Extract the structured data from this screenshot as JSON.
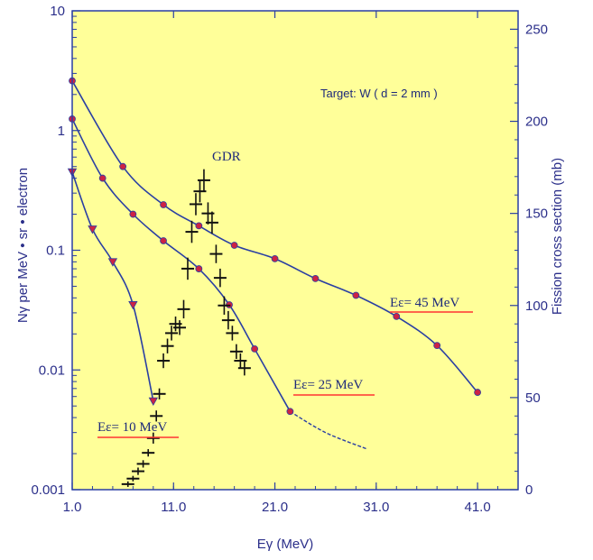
{
  "chart_data": {
    "type": "line",
    "xlabel": "Eγ (MeV)",
    "ylabel_left": "Nγ per MeV • sr • electron",
    "ylabel_right": "Fission cross section (mb)",
    "x_ticks": [
      "1.0",
      "11.0",
      "21.0",
      "31.0",
      "41.0"
    ],
    "y_left_ticks": [
      "0.001",
      "0.01",
      "0.1",
      "1",
      "10"
    ],
    "y_right_ticks": [
      "0",
      "50",
      "100",
      "150",
      "200",
      "250"
    ],
    "xlim": [
      1,
      45
    ],
    "ylim_left": [
      0.001,
      10
    ],
    "y_left_scale": "log",
    "ylim_right": [
      0,
      260
    ],
    "background": "#ffff99",
    "line_color": "#2a3fa3",
    "marker_color": "#cc2244",
    "label_line_color": "#ff3333",
    "annotations": {
      "target": "Target:  W ( d = 2 mm )",
      "gdr": "GDR",
      "e45": "Eε= 45 MeV",
      "e25": "Eε= 25 MeV",
      "e10": "Eε= 10 MeV"
    },
    "series": [
      {
        "name": "Eε= 45 MeV",
        "marker": "circle",
        "x": [
          1.0,
          6.0,
          10.0,
          13.5,
          17.0,
          21.0,
          25.0,
          29.0,
          33.0,
          37.0,
          41.0
        ],
        "y": [
          2.6,
          0.5,
          0.24,
          0.16,
          0.11,
          0.085,
          0.058,
          0.042,
          0.028,
          0.016,
          0.0065
        ]
      },
      {
        "name": "Eε= 25 MeV",
        "marker": "circle",
        "x": [
          1.0,
          4.0,
          7.0,
          10.0,
          13.5,
          16.5,
          19.0,
          22.5
        ],
        "y": [
          1.25,
          0.4,
          0.2,
          0.12,
          0.07,
          0.035,
          0.015,
          0.0045
        ],
        "tail_x": [
          22.5,
          26.0,
          30.0
        ],
        "tail_y": [
          0.0045,
          0.003,
          0.0022
        ]
      },
      {
        "name": "Eε= 10 MeV",
        "marker": "triangle",
        "x": [
          1.0,
          3.0,
          5.0,
          7.0,
          9.0
        ],
        "y": [
          0.45,
          0.15,
          0.08,
          0.035,
          0.0055
        ]
      },
      {
        "name": "Fission cross section",
        "marker": "errorbar",
        "axis": "right",
        "x": [
          6.5,
          7.0,
          7.5,
          8.0,
          8.5,
          9.0,
          9.3,
          9.6,
          10.0,
          10.4,
          10.8,
          11.2,
          11.6,
          12.0,
          12.4,
          12.8,
          13.2,
          13.6,
          14.0,
          14.4,
          14.8,
          15.2,
          15.6,
          16.0,
          16.4,
          16.8,
          17.2,
          17.6,
          18.0
        ],
        "y": [
          3,
          6,
          10,
          14,
          20,
          28,
          40,
          52,
          70,
          78,
          85,
          90,
          88,
          98,
          120,
          140,
          155,
          162,
          168,
          150,
          145,
          128,
          115,
          100,
          92,
          85,
          75,
          70,
          66
        ],
        "err": [
          1.5,
          1.5,
          2,
          2,
          2,
          3,
          3,
          3,
          4,
          4,
          4,
          4,
          4,
          5,
          6,
          6,
          6,
          6,
          6,
          6,
          6,
          5,
          5,
          5,
          5,
          4,
          4,
          4,
          4
        ]
      }
    ]
  }
}
